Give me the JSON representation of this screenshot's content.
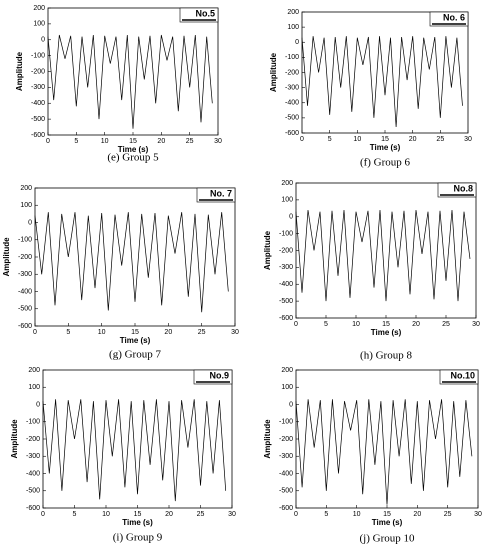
{
  "chart_data": [
    {
      "type": "line",
      "caption": "(e) Group 5",
      "x_label": "Time (s)",
      "y_label": "Amplitude",
      "x": [
        0,
        1,
        2,
        3,
        4,
        5,
        6,
        7,
        8,
        9,
        10,
        11,
        12,
        13,
        14,
        15,
        16,
        17,
        18,
        19,
        20,
        21,
        22,
        23,
        24,
        25,
        26,
        27,
        28,
        29
      ],
      "series": [
        {
          "name": "No.5",
          "color": "#000000",
          "values": [
            20,
            -380,
            30,
            -120,
            25,
            -420,
            20,
            -300,
            30,
            -500,
            25,
            -150,
            20,
            -380,
            30,
            -560,
            20,
            -250,
            25,
            -400,
            30,
            -130,
            20,
            -450,
            25,
            -300,
            30,
            -520,
            20,
            -400
          ]
        }
      ],
      "xlim": [
        0,
        30
      ],
      "xticks": [
        0,
        5,
        10,
        15,
        20,
        25,
        30
      ],
      "ylim": [
        -600,
        200
      ],
      "yticks": [
        -600,
        -500,
        -400,
        -300,
        -200,
        -100,
        0,
        100,
        200
      ]
    },
    {
      "type": "line",
      "caption": "(f) Group 6",
      "x_label": "Time (s)",
      "y_label": "Amplitude",
      "x": [
        0,
        1,
        2,
        3,
        4,
        5,
        6,
        7,
        8,
        9,
        10,
        11,
        12,
        13,
        14,
        15,
        16,
        17,
        18,
        19,
        20,
        21,
        22,
        23,
        24,
        25,
        26,
        27,
        28,
        29
      ],
      "series": [
        {
          "name": "No. 6",
          "color": "#000000",
          "values": [
            30,
            -420,
            40,
            -200,
            30,
            -480,
            35,
            -300,
            40,
            -460,
            30,
            -150,
            35,
            -500,
            40,
            -350,
            30,
            -560,
            35,
            -250,
            40,
            -440,
            30,
            -180,
            35,
            -500,
            40,
            -300,
            30,
            -420
          ]
        }
      ],
      "xlim": [
        0,
        30
      ],
      "xticks": [
        0,
        5,
        10,
        15,
        20,
        25,
        30
      ],
      "ylim": [
        -600,
        200
      ],
      "yticks": [
        -600,
        -500,
        -400,
        -300,
        -200,
        -100,
        0,
        100,
        200
      ]
    },
    {
      "type": "line",
      "caption": "(g) Group 7",
      "x_label": "Time (s)",
      "y_label": "Amplitude",
      "x": [
        0,
        1,
        2,
        3,
        4,
        5,
        6,
        7,
        8,
        9,
        10,
        11,
        12,
        13,
        14,
        15,
        16,
        17,
        18,
        19,
        20,
        21,
        22,
        23,
        24,
        25,
        26,
        27,
        28,
        29
      ],
      "series": [
        {
          "name": "No. 7",
          "color": "#000000",
          "values": [
            40,
            -300,
            60,
            -480,
            50,
            -200,
            60,
            -450,
            40,
            -380,
            55,
            -510,
            45,
            -250,
            60,
            -460,
            50,
            -320,
            55,
            -480,
            40,
            -180,
            60,
            -430,
            50,
            -520,
            45,
            -300,
            60,
            -400
          ]
        }
      ],
      "xlim": [
        0,
        30
      ],
      "xticks": [
        0,
        5,
        10,
        15,
        20,
        25,
        30
      ],
      "ylim": [
        -600,
        200
      ],
      "yticks": [
        -600,
        -500,
        -400,
        -300,
        -200,
        -100,
        0,
        100,
        200
      ]
    },
    {
      "type": "line",
      "caption": "(h) Group 8",
      "x_label": "Time (s)",
      "y_label": "Amplitude",
      "x": [
        0,
        1,
        2,
        3,
        4,
        5,
        6,
        7,
        8,
        9,
        10,
        11,
        12,
        13,
        14,
        15,
        16,
        17,
        18,
        19,
        20,
        21,
        22,
        23,
        24,
        25,
        26,
        27,
        28,
        29
      ],
      "series": [
        {
          "name": "No.8",
          "color": "#000000",
          "values": [
            30,
            -450,
            40,
            -200,
            30,
            -500,
            35,
            -350,
            40,
            -480,
            30,
            -150,
            35,
            -420,
            40,
            -500,
            30,
            -300,
            35,
            -460,
            40,
            -220,
            30,
            -490,
            35,
            -380,
            40,
            -500,
            30,
            -250
          ]
        }
      ],
      "xlim": [
        0,
        30
      ],
      "xticks": [
        0,
        5,
        10,
        15,
        20,
        25,
        30
      ],
      "ylim": [
        -600,
        200
      ],
      "yticks": [
        -600,
        -500,
        -400,
        -300,
        -200,
        -100,
        0,
        100,
        200
      ]
    },
    {
      "type": "line",
      "caption": "(i) Group 9",
      "x_label": "Time (s)",
      "y_label": "Amplitude",
      "x": [
        0,
        1,
        2,
        3,
        4,
        5,
        6,
        7,
        8,
        9,
        10,
        11,
        12,
        13,
        14,
        15,
        16,
        17,
        18,
        19,
        20,
        21,
        22,
        23,
        24,
        25,
        26,
        27,
        28,
        29
      ],
      "series": [
        {
          "name": "No.9",
          "color": "#000000",
          "values": [
            20,
            -400,
            30,
            -500,
            25,
            -200,
            30,
            -450,
            20,
            -550,
            25,
            -300,
            30,
            -480,
            20,
            -520,
            25,
            -350,
            30,
            -440,
            20,
            -560,
            25,
            -250,
            30,
            -470,
            20,
            -400,
            25,
            -500
          ]
        }
      ],
      "xlim": [
        0,
        30
      ],
      "xticks": [
        0,
        5,
        10,
        15,
        20,
        25,
        30
      ],
      "ylim": [
        -600,
        200
      ],
      "yticks": [
        -600,
        -500,
        -400,
        -300,
        -200,
        -100,
        0,
        100,
        200
      ]
    },
    {
      "type": "line",
      "caption": "(j) Group 10",
      "x_label": "Time (s)",
      "y_label": "Amplitude",
      "x": [
        0,
        1,
        2,
        3,
        4,
        5,
        6,
        7,
        8,
        9,
        10,
        11,
        12,
        13,
        14,
        15,
        16,
        17,
        18,
        19,
        20,
        21,
        22,
        23,
        24,
        25,
        26,
        27,
        28,
        29
      ],
      "series": [
        {
          "name": "No.10",
          "color": "#000000",
          "values": [
            20,
            -480,
            30,
            -250,
            25,
            -500,
            30,
            -400,
            20,
            -150,
            25,
            -520,
            30,
            -350,
            20,
            -580,
            25,
            -300,
            30,
            -460,
            20,
            -500,
            25,
            -200,
            30,
            -480,
            20,
            -420,
            25,
            -300
          ]
        }
      ],
      "xlim": [
        0,
        30
      ],
      "xticks": [
        0,
        5,
        10,
        15,
        20,
        25,
        30
      ],
      "ylim": [
        -600,
        200
      ],
      "yticks": [
        -600,
        -500,
        -400,
        -300,
        -200,
        -100,
        0,
        100,
        200
      ]
    }
  ]
}
